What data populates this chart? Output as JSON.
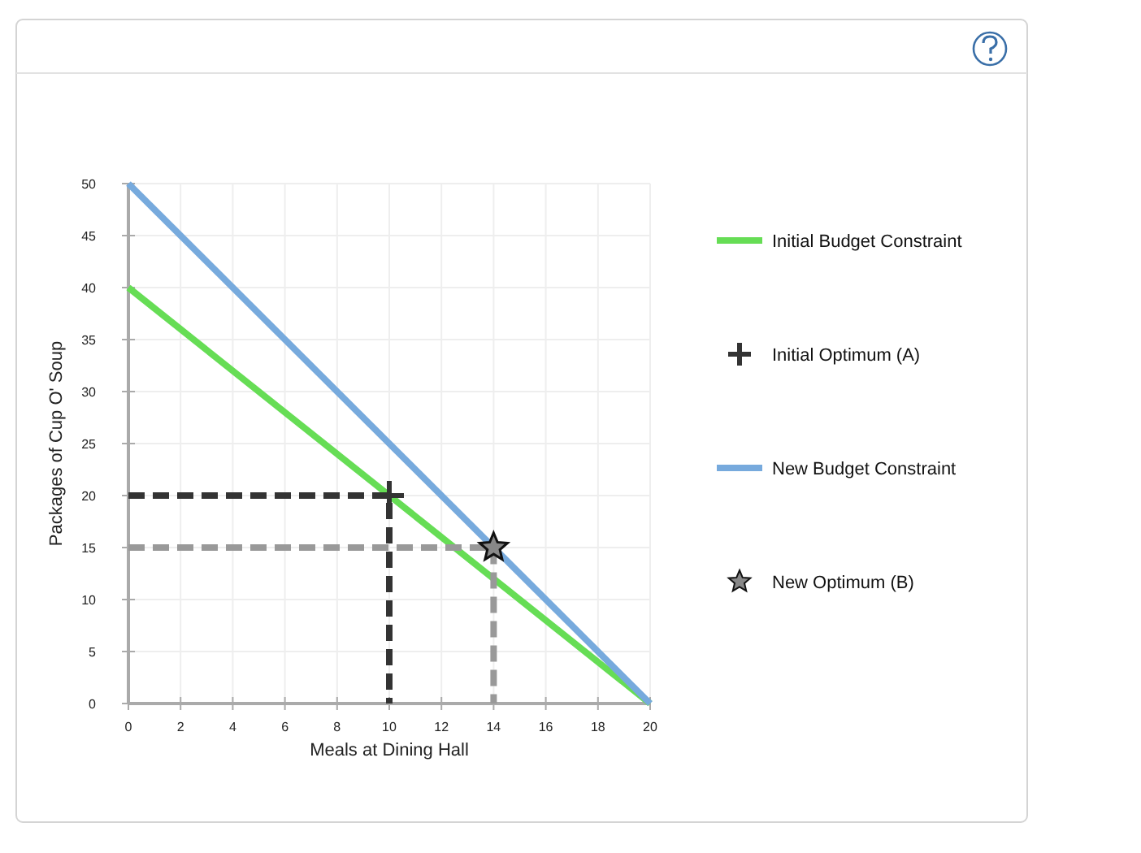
{
  "chart_data": {
    "type": "line",
    "xlabel": "Meals at Dining Hall",
    "ylabel": "Packages of Cup O' Soup",
    "xlim": [
      0,
      20
    ],
    "xticks": [
      0,
      2,
      4,
      6,
      8,
      10,
      12,
      14,
      16,
      18,
      20
    ],
    "ylim": [
      0,
      50
    ],
    "yticks": [
      0,
      5,
      10,
      15,
      20,
      25,
      30,
      35,
      40,
      45,
      50
    ],
    "grid": true,
    "legend": "right",
    "series": [
      {
        "name": "Initial Budget Constraint",
        "color": "#66dd55",
        "x": [
          0,
          20
        ],
        "values": [
          40,
          0
        ]
      },
      {
        "name": "Initial Optimum (A)",
        "type": "scatter",
        "color": "#333333",
        "marker": "cross",
        "x": [
          10
        ],
        "values": [
          20
        ]
      },
      {
        "name": "New Budget Constraint",
        "color": "#77aadd",
        "x": [
          0,
          20
        ],
        "values": [
          50,
          0
        ]
      },
      {
        "name": "New Optimum (B)",
        "type": "scatter",
        "color": "#888888",
        "marker": "star",
        "x": [
          14
        ],
        "values": [
          15
        ]
      },
      {
        "line_style": "dashed",
        "color": "#333333",
        "x": [
          0,
          10,
          10
        ],
        "values": [
          20,
          20,
          0
        ]
      },
      {
        "line_style": "dashed",
        "color": "#999999",
        "x": [
          0,
          14,
          14
        ],
        "values": [
          15,
          15,
          0
        ]
      }
    ]
  }
}
